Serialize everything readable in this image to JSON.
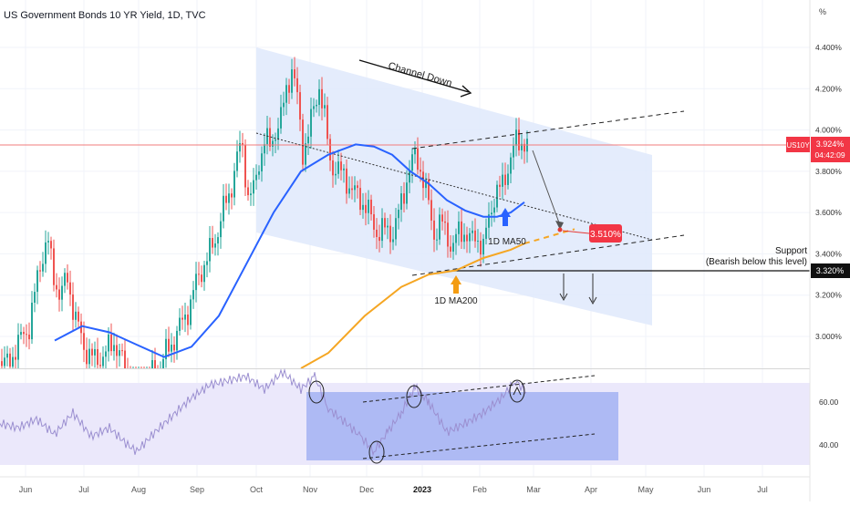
{
  "header": {
    "title": "US Government Bonds 10 YR Yield, 1D, TVC"
  },
  "axis": {
    "unit_label": "%"
  },
  "price_badge": {
    "symbol": "US10Y",
    "value": "3.924%",
    "countdown": "04:42:09"
  },
  "annotations": {
    "channel": "Channel Down",
    "ma50": "1D MA50",
    "ma200": "1D MA200",
    "target": "3.510%",
    "support_title": "Support",
    "support_sub": "(Bearish below this level)",
    "support_value": "3.320%"
  },
  "colors": {
    "up": "#26a69a",
    "down": "#ef5350",
    "ma50": "#2962ff",
    "ma200": "#f5a623",
    "channel_fill": "#dfe9fb",
    "rsi": "#9b8fd0",
    "rsi_box": "#8ea2f0",
    "price_line": "#f27c7c",
    "badge": "#f23645"
  },
  "chart_data": [
    {
      "type": "candlestick",
      "title": "US Government Bonds 10 YR Yield, 1D, TVC",
      "ylim": [
        2.8,
        4.55
      ],
      "y_ticks": [
        "4.400%",
        "4.200%",
        "4.000%",
        "3.800%",
        "3.600%",
        "3.400%",
        "3.200%",
        "3.000%"
      ],
      "x_ticks": [
        "Jun",
        "Jul",
        "Aug",
        "Sep",
        "Oct",
        "Nov",
        "Dec",
        "2023",
        "Feb",
        "Mar",
        "Apr",
        "May",
        "Jun",
        "Jul"
      ],
      "last_value": 3.924,
      "close_path": [
        [
          0,
          2.88
        ],
        [
          8,
          2.86
        ],
        [
          18,
          2.95
        ],
        [
          32,
          3.05
        ],
        [
          44,
          3.35
        ],
        [
          52,
          3.48
        ],
        [
          58,
          3.3
        ],
        [
          66,
          3.2
        ],
        [
          74,
          3.28
        ],
        [
          82,
          3.1
        ],
        [
          92,
          2.95
        ],
        [
          104,
          2.88
        ],
        [
          116,
          2.92
        ],
        [
          126,
          2.98
        ],
        [
          136,
          2.85
        ],
        [
          148,
          2.72
        ],
        [
          160,
          2.8
        ],
        [
          172,
          2.83
        ],
        [
          186,
          2.95
        ],
        [
          198,
          3.05
        ],
        [
          208,
          3.15
        ],
        [
          218,
          3.3
        ],
        [
          228,
          3.38
        ],
        [
          238,
          3.5
        ],
        [
          244,
          3.6
        ],
        [
          252,
          3.7
        ],
        [
          258,
          3.82
        ],
        [
          265,
          3.95
        ],
        [
          272,
          3.68
        ],
        [
          278,
          3.7
        ],
        [
          284,
          3.85
        ],
        [
          290,
          3.95
        ],
        [
          296,
          3.92
        ],
        [
          302,
          4.0
        ],
        [
          308,
          4.05
        ],
        [
          314,
          4.2
        ],
        [
          320,
          4.3
        ],
        [
          326,
          4.15
        ],
        [
          332,
          3.9
        ],
        [
          338,
          3.98
        ],
        [
          344,
          4.1
        ],
        [
          350,
          4.22
        ],
        [
          356,
          4.05
        ],
        [
          362,
          3.85
        ],
        [
          370,
          3.8
        ],
        [
          378,
          3.78
        ],
        [
          386,
          3.7
        ],
        [
          394,
          3.68
        ],
        [
          404,
          3.6
        ],
        [
          414,
          3.5
        ],
        [
          424,
          3.52
        ],
        [
          432,
          3.5
        ],
        [
          440,
          3.65
        ],
        [
          448,
          3.8
        ],
        [
          456,
          3.88
        ],
        [
          462,
          3.8
        ],
        [
          468,
          3.68
        ],
        [
          476,
          3.5
        ],
        [
          484,
          3.55
        ],
        [
          490,
          3.5
        ],
        [
          496,
          3.42
        ],
        [
          502,
          3.5
        ],
        [
          508,
          3.52
        ],
        [
          516,
          3.45
        ],
        [
          522,
          3.5
        ],
        [
          530,
          3.42
        ],
        [
          536,
          3.58
        ],
        [
          542,
          3.68
        ],
        [
          550,
          3.72
        ],
        [
          558,
          3.84
        ],
        [
          566,
          3.94
        ],
        [
          572,
          3.95
        ],
        [
          578,
          3.92
        ]
      ],
      "ma50_path": [
        [
          60,
          2.98
        ],
        [
          90,
          3.05
        ],
        [
          120,
          3.02
        ],
        [
          150,
          2.96
        ],
        [
          180,
          2.9
        ],
        [
          210,
          2.95
        ],
        [
          240,
          3.1
        ],
        [
          270,
          3.35
        ],
        [
          300,
          3.6
        ],
        [
          330,
          3.8
        ],
        [
          360,
          3.88
        ],
        [
          390,
          3.93
        ],
        [
          410,
          3.92
        ],
        [
          430,
          3.88
        ],
        [
          450,
          3.8
        ],
        [
          470,
          3.74
        ],
        [
          490,
          3.66
        ],
        [
          510,
          3.61
        ],
        [
          530,
          3.58
        ],
        [
          545,
          3.58
        ],
        [
          560,
          3.6
        ],
        [
          575,
          3.65
        ]
      ],
      "ma200_path": [
        [
          330,
          2.75
        ],
        [
          360,
          2.92
        ],
        [
          400,
          3.1
        ],
        [
          440,
          3.24
        ],
        [
          470,
          3.3
        ],
        [
          500,
          3.32
        ],
        [
          530,
          3.38
        ],
        [
          560,
          3.42
        ],
        [
          575,
          3.45
        ]
      ],
      "ma200_projection": [
        [
          575,
          3.45
        ],
        [
          630,
          3.52
        ]
      ]
    },
    {
      "type": "line",
      "ylim": [
        30,
        80
      ],
      "y_ticks": [
        "60.00",
        "40.00"
      ],
      "path": [
        [
          0,
          50
        ],
        [
          20,
          48
        ],
        [
          40,
          52
        ],
        [
          60,
          45
        ],
        [
          80,
          55
        ],
        [
          100,
          44
        ],
        [
          120,
          48
        ],
        [
          140,
          40
        ],
        [
          150,
          37
        ],
        [
          170,
          46
        ],
        [
          190,
          54
        ],
        [
          210,
          62
        ],
        [
          230,
          68
        ],
        [
          250,
          70
        ],
        [
          270,
          72
        ],
        [
          290,
          66
        ],
        [
          310,
          74
        ],
        [
          330,
          66
        ],
        [
          345,
          72
        ],
        [
          360,
          57
        ],
        [
          380,
          50
        ],
        [
          395,
          44
        ],
        [
          410,
          37
        ],
        [
          425,
          46
        ],
        [
          440,
          55
        ],
        [
          455,
          67
        ],
        [
          470,
          60
        ],
        [
          490,
          46
        ],
        [
          510,
          50
        ],
        [
          530,
          55
        ],
        [
          550,
          62
        ],
        [
          565,
          70
        ],
        [
          578,
          64
        ]
      ]
    }
  ]
}
